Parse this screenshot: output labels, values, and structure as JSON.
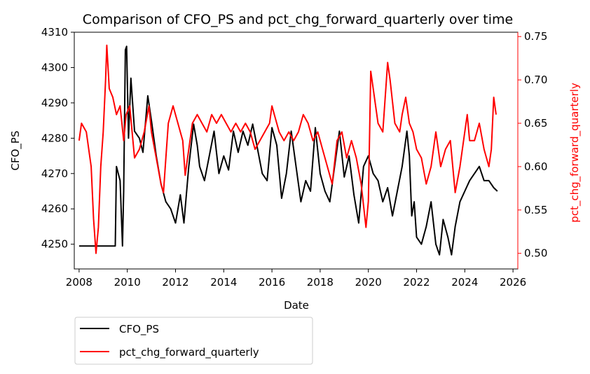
{
  "chart_data": {
    "type": "line",
    "title": "Comparison of CFO_PS and pct_chg_forward_quarterly over time",
    "xlabel": "Date",
    "ylabel_left": "CFO_PS",
    "ylabel_right": "pct_chg_forward_quarterly",
    "xlim": [
      2007.8,
      2026.2
    ],
    "x_ticks": [
      2008,
      2010,
      2012,
      2014,
      2016,
      2018,
      2020,
      2022,
      2024,
      2026
    ],
    "ylim_left": [
      4243,
      4310
    ],
    "y_ticks_left": [
      4250,
      4260,
      4270,
      4280,
      4290,
      4300,
      4310
    ],
    "ylim_right": [
      0.482,
      0.755
    ],
    "y_ticks_right": [
      0.5,
      0.55,
      0.6,
      0.65,
      0.7,
      0.75
    ],
    "y_tick_labels_right": [
      "0.50",
      "0.55",
      "0.60",
      "0.65",
      "0.70",
      "0.75"
    ],
    "grid": false,
    "legend_placement": "below-left",
    "colors": {
      "CFO_PS": "#000000",
      "pct_chg_forward_quarterly": "#ff0000"
    },
    "series": [
      {
        "name": "CFO_PS",
        "axis": "left",
        "points": [
          [
            2008.0,
            4249.5
          ],
          [
            2009.5,
            4249.5
          ],
          [
            2009.55,
            4272
          ],
          [
            2009.7,
            4268
          ],
          [
            2009.8,
            4249.5
          ],
          [
            2009.85,
            4265
          ],
          [
            2009.92,
            4305
          ],
          [
            2009.97,
            4306
          ],
          [
            2010.05,
            4280
          ],
          [
            2010.15,
            4297
          ],
          [
            2010.3,
            4282
          ],
          [
            2010.5,
            4280
          ],
          [
            2010.65,
            4276
          ],
          [
            2010.85,
            4292
          ],
          [
            2011.0,
            4285
          ],
          [
            2011.2,
            4275
          ],
          [
            2011.4,
            4267
          ],
          [
            2011.6,
            4262
          ],
          [
            2011.8,
            4260
          ],
          [
            2012.0,
            4256
          ],
          [
            2012.2,
            4264
          ],
          [
            2012.35,
            4256
          ],
          [
            2012.55,
            4272
          ],
          [
            2012.75,
            4284
          ],
          [
            2012.9,
            4278
          ],
          [
            2013.0,
            4272
          ],
          [
            2013.2,
            4268
          ],
          [
            2013.4,
            4275
          ],
          [
            2013.6,
            4282
          ],
          [
            2013.8,
            4270
          ],
          [
            2014.0,
            4275
          ],
          [
            2014.2,
            4271
          ],
          [
            2014.4,
            4282
          ],
          [
            2014.6,
            4276
          ],
          [
            2014.8,
            4282
          ],
          [
            2015.0,
            4278
          ],
          [
            2015.2,
            4284
          ],
          [
            2015.4,
            4277
          ],
          [
            2015.6,
            4270
          ],
          [
            2015.8,
            4268
          ],
          [
            2016.0,
            4283
          ],
          [
            2016.2,
            4278
          ],
          [
            2016.4,
            4263
          ],
          [
            2016.6,
            4270
          ],
          [
            2016.8,
            4282
          ],
          [
            2017.0,
            4272
          ],
          [
            2017.2,
            4262
          ],
          [
            2017.4,
            4268
          ],
          [
            2017.6,
            4265
          ],
          [
            2017.8,
            4283
          ],
          [
            2018.0,
            4270
          ],
          [
            2018.2,
            4265
          ],
          [
            2018.4,
            4262
          ],
          [
            2018.6,
            4272
          ],
          [
            2018.8,
            4282
          ],
          [
            2019.0,
            4269
          ],
          [
            2019.2,
            4275
          ],
          [
            2019.4,
            4264
          ],
          [
            2019.6,
            4256
          ],
          [
            2019.8,
            4272
          ],
          [
            2020.0,
            4275
          ],
          [
            2020.2,
            4270
          ],
          [
            2020.4,
            4268
          ],
          [
            2020.6,
            4262
          ],
          [
            2020.8,
            4266
          ],
          [
            2021.0,
            4258
          ],
          [
            2021.2,
            4265
          ],
          [
            2021.4,
            4272
          ],
          [
            2021.6,
            4282
          ],
          [
            2021.7,
            4275
          ],
          [
            2021.8,
            4258
          ],
          [
            2021.9,
            4262
          ],
          [
            2022.0,
            4252
          ],
          [
            2022.2,
            4250
          ],
          [
            2022.4,
            4255
          ],
          [
            2022.6,
            4262
          ],
          [
            2022.8,
            4250
          ],
          [
            2022.95,
            4247
          ],
          [
            2023.1,
            4257
          ],
          [
            2023.3,
            4252
          ],
          [
            2023.45,
            4247
          ],
          [
            2023.6,
            4255
          ],
          [
            2023.8,
            4262
          ],
          [
            2024.0,
            4265
          ],
          [
            2024.2,
            4268
          ],
          [
            2024.4,
            4270
          ],
          [
            2024.6,
            4272
          ],
          [
            2024.8,
            4268
          ],
          [
            2025.0,
            4268
          ],
          [
            2025.2,
            4266
          ],
          [
            2025.35,
            4265
          ]
        ]
      },
      {
        "name": "pct_chg_forward_quarterly",
        "axis": "right",
        "points": [
          [
            2008.0,
            0.63
          ],
          [
            2008.1,
            0.65
          ],
          [
            2008.3,
            0.64
          ],
          [
            2008.5,
            0.6
          ],
          [
            2008.6,
            0.54
          ],
          [
            2008.7,
            0.5
          ],
          [
            2008.8,
            0.53
          ],
          [
            2008.9,
            0.6
          ],
          [
            2009.0,
            0.64
          ],
          [
            2009.1,
            0.7
          ],
          [
            2009.15,
            0.74
          ],
          [
            2009.25,
            0.69
          ],
          [
            2009.4,
            0.68
          ],
          [
            2009.55,
            0.66
          ],
          [
            2009.7,
            0.67
          ],
          [
            2009.85,
            0.63
          ],
          [
            2009.95,
            0.66
          ],
          [
            2010.1,
            0.67
          ],
          [
            2010.3,
            0.61
          ],
          [
            2010.5,
            0.62
          ],
          [
            2010.7,
            0.64
          ],
          [
            2010.9,
            0.67
          ],
          [
            2011.0,
            0.64
          ],
          [
            2011.2,
            0.61
          ],
          [
            2011.4,
            0.58
          ],
          [
            2011.5,
            0.57
          ],
          [
            2011.6,
            0.61
          ],
          [
            2011.7,
            0.65
          ],
          [
            2011.9,
            0.67
          ],
          [
            2012.1,
            0.65
          ],
          [
            2012.3,
            0.63
          ],
          [
            2012.4,
            0.59
          ],
          [
            2012.5,
            0.61
          ],
          [
            2012.7,
            0.65
          ],
          [
            2012.9,
            0.66
          ],
          [
            2013.1,
            0.65
          ],
          [
            2013.3,
            0.64
          ],
          [
            2013.5,
            0.66
          ],
          [
            2013.7,
            0.65
          ],
          [
            2013.9,
            0.66
          ],
          [
            2014.1,
            0.65
          ],
          [
            2014.3,
            0.64
          ],
          [
            2014.5,
            0.65
          ],
          [
            2014.7,
            0.64
          ],
          [
            2014.9,
            0.65
          ],
          [
            2015.1,
            0.64
          ],
          [
            2015.3,
            0.62
          ],
          [
            2015.5,
            0.63
          ],
          [
            2015.7,
            0.64
          ],
          [
            2015.9,
            0.65
          ],
          [
            2016.0,
            0.67
          ],
          [
            2016.1,
            0.66
          ],
          [
            2016.3,
            0.64
          ],
          [
            2016.5,
            0.63
          ],
          [
            2016.7,
            0.64
          ],
          [
            2016.9,
            0.63
          ],
          [
            2017.1,
            0.64
          ],
          [
            2017.3,
            0.66
          ],
          [
            2017.5,
            0.65
          ],
          [
            2017.7,
            0.63
          ],
          [
            2017.9,
            0.64
          ],
          [
            2018.1,
            0.62
          ],
          [
            2018.3,
            0.6
          ],
          [
            2018.5,
            0.58
          ],
          [
            2018.7,
            0.63
          ],
          [
            2018.9,
            0.64
          ],
          [
            2019.1,
            0.61
          ],
          [
            2019.3,
            0.63
          ],
          [
            2019.5,
            0.61
          ],
          [
            2019.7,
            0.58
          ],
          [
            2019.9,
            0.53
          ],
          [
            2020.0,
            0.56
          ],
          [
            2020.1,
            0.71
          ],
          [
            2020.2,
            0.69
          ],
          [
            2020.4,
            0.65
          ],
          [
            2020.6,
            0.64
          ],
          [
            2020.8,
            0.72
          ],
          [
            2020.9,
            0.7
          ],
          [
            2021.1,
            0.65
          ],
          [
            2021.3,
            0.64
          ],
          [
            2021.4,
            0.66
          ],
          [
            2021.55,
            0.68
          ],
          [
            2021.7,
            0.65
          ],
          [
            2021.85,
            0.64
          ],
          [
            2022.0,
            0.62
          ],
          [
            2022.2,
            0.61
          ],
          [
            2022.4,
            0.58
          ],
          [
            2022.6,
            0.6
          ],
          [
            2022.8,
            0.64
          ],
          [
            2022.9,
            0.62
          ],
          [
            2023.0,
            0.6
          ],
          [
            2023.2,
            0.62
          ],
          [
            2023.4,
            0.63
          ],
          [
            2023.6,
            0.57
          ],
          [
            2023.8,
            0.6
          ],
          [
            2024.0,
            0.64
          ],
          [
            2024.1,
            0.66
          ],
          [
            2024.2,
            0.63
          ],
          [
            2024.4,
            0.63
          ],
          [
            2024.6,
            0.65
          ],
          [
            2024.8,
            0.62
          ],
          [
            2025.0,
            0.6
          ],
          [
            2025.1,
            0.62
          ],
          [
            2025.2,
            0.68
          ],
          [
            2025.3,
            0.66
          ]
        ]
      }
    ]
  }
}
